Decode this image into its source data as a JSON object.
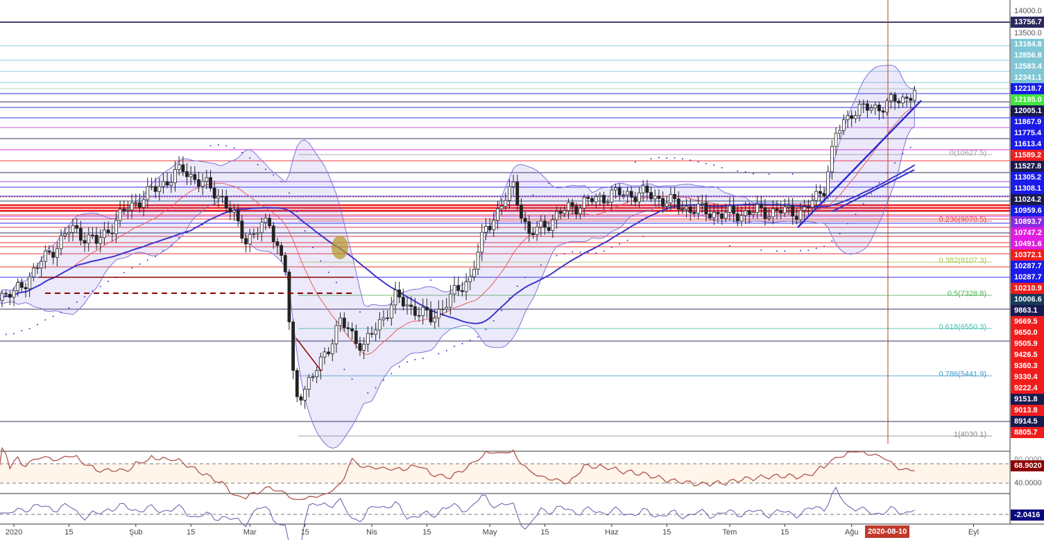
{
  "chart_data": {
    "type": "candlestick",
    "title": "",
    "x_unit": "day index from 2020-01-01",
    "price_anchors": [
      [
        -4,
        7345
      ],
      [
        0,
        7345
      ],
      [
        6.7,
        8076
      ],
      [
        14.6,
        8889
      ],
      [
        21,
        8564
      ],
      [
        29,
        9376
      ],
      [
        39,
        10026
      ],
      [
        43,
        10270
      ],
      [
        53,
        9620
      ],
      [
        59,
        8645
      ],
      [
        65,
        9051
      ],
      [
        69,
        7914
      ],
      [
        71.4,
        4907
      ],
      [
        76,
        5395
      ],
      [
        83,
        6695
      ],
      [
        89,
        6126
      ],
      [
        97,
        7264
      ],
      [
        106,
        6776
      ],
      [
        116,
        7751
      ],
      [
        120,
        8889
      ],
      [
        127,
        9864
      ],
      [
        131,
        8726
      ],
      [
        141,
        9376
      ],
      [
        152,
        9701
      ],
      [
        161,
        9701
      ],
      [
        171,
        9376
      ],
      [
        181,
        9214
      ],
      [
        190,
        9295
      ],
      [
        201,
        9295
      ],
      [
        206,
        9864
      ],
      [
        209,
        11082
      ],
      [
        213,
        11651
      ],
      [
        219,
        11732
      ],
      [
        222,
        11813
      ],
      [
        227,
        11976
      ],
      [
        229,
        12139
      ]
    ],
    "indicators": [
      "SMA 20",
      "SMA 50",
      "Bollinger Bands",
      "Parabolic SAR",
      "RSI",
      "Oscillator"
    ],
    "fib_levels": [
      {
        "label": "0(10627.5)",
        "value": 10627.5,
        "color": "#9e9e9e"
      },
      {
        "label": "0.236(9070.5)",
        "value": 9070.5,
        "color": "#e0474c"
      },
      {
        "label": "0.382(8107.3)",
        "value": 8107.3,
        "color": "#a5c44a"
      },
      {
        "label": "0.5(7328.8)",
        "value": 7328.8,
        "color": "#4caf50"
      },
      {
        "label": "0.618(6550.3)",
        "value": 6550.3,
        "color": "#3fbfa9"
      },
      {
        "label": "0.786(5441.9)",
        "value": 5441.9,
        "color": "#3c9bc8"
      },
      {
        "label": "1(4030.1)",
        "value": 4030.1,
        "color": "#888"
      }
    ],
    "price_axis_ticks": [
      "14000.0",
      "13500.0"
    ],
    "price_labels": [
      {
        "text": "13756.7",
        "color": "#2b2a5e"
      },
      {
        "text": "13500.0",
        "color": ""
      },
      {
        "text": "13184.8",
        "color": "#7fc7d6"
      },
      {
        "text": "12856.8",
        "color": "#7fc7d6"
      },
      {
        "text": "12583.4",
        "color": "#7fc7d6"
      },
      {
        "text": "12341.1",
        "color": "#7fc7d6"
      },
      {
        "text": "12218.7",
        "color": "#1a1aea"
      },
      {
        "text": "12195.0",
        "color": "#3ee63e"
      },
      {
        "text": "12005.1",
        "color": "#1a1a50"
      },
      {
        "text": "11867.9",
        "color": "#1a1aea"
      },
      {
        "text": "11775.4",
        "color": "#1a1aea"
      },
      {
        "text": "11613.4",
        "color": "#1a1aea"
      },
      {
        "text": "11589.2",
        "color": "#f21c1c"
      },
      {
        "text": "11527.8",
        "color": "#1a1a50"
      },
      {
        "text": "11305.2",
        "color": "#1a1aea"
      },
      {
        "text": "11308.1",
        "color": "#1a1aea"
      },
      {
        "text": "11024.2",
        "color": "#1a1a50"
      },
      {
        "text": "10959.6",
        "color": "#1a1aea"
      },
      {
        "text": "10893.7",
        "color": "#8a2be2"
      },
      {
        "text": "10747.2",
        "color": "#e21ce2"
      },
      {
        "text": "10491.6",
        "color": "#e21ce2"
      },
      {
        "text": "10372.1",
        "color": "#f21c1c"
      },
      {
        "text": "10287.7",
        "color": "#1a1aea"
      },
      {
        "text": "10287.7",
        "color": "#1a1aea"
      },
      {
        "text": "10210.9",
        "color": "#f21c1c"
      },
      {
        "text": "10006.6",
        "color": "#153a5a"
      },
      {
        "text": "9863.1",
        "color": "#1a1a50"
      },
      {
        "text": "9669.5",
        "color": "#f21c1c"
      },
      {
        "text": "9650.0",
        "color": "#f21c1c"
      },
      {
        "text": "9505.9",
        "color": "#f21c1c"
      },
      {
        "text": "9426.5",
        "color": "#f21c1c"
      },
      {
        "text": "9360.3",
        "color": "#f21c1c"
      },
      {
        "text": "9330.4",
        "color": "#f21c1c"
      },
      {
        "text": "9222.4",
        "color": "#f21c1c"
      },
      {
        "text": "9151.8",
        "color": "#1a1a50"
      },
      {
        "text": "9013.8",
        "color": "#f21c1c"
      },
      {
        "text": "8914.5",
        "color": "#1a1a50"
      },
      {
        "text": "8805.7",
        "color": "#f21c1c"
      }
    ],
    "top_tick": "14000.0",
    "rsi": {
      "value": "68.9020",
      "upper": "80.0000",
      "lower": "40.0000",
      "color": "#8b0000"
    },
    "oscillator": {
      "value": "-2.0416",
      "color": "#0a0a80"
    },
    "time_ticks": [
      [
        "2020",
        0
      ],
      [
        "15",
        14
      ],
      [
        "Şub",
        31
      ],
      [
        "15",
        45
      ],
      [
        "Mar",
        60
      ],
      [
        "15",
        74
      ],
      [
        "Nis",
        91
      ],
      [
        "15",
        105
      ],
      [
        "May",
        121
      ],
      [
        "15",
        135
      ],
      [
        "Haz",
        152
      ],
      [
        "15",
        166
      ],
      [
        "Tem",
        182
      ],
      [
        "15",
        196
      ],
      [
        "Ağu",
        213
      ],
      [
        "Eyl",
        244
      ]
    ],
    "crosshair_date": "2020-08-10"
  }
}
